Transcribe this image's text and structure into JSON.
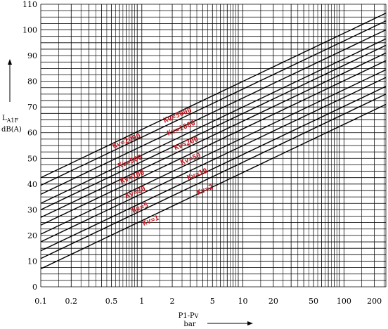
{
  "chart_data": {
    "type": "line",
    "x_scale": "log",
    "xlim": [
      0.1,
      260
    ],
    "ylim": [
      0,
      110
    ],
    "x_ticks": [
      "0.1",
      "0.2",
      "0.5",
      "1",
      "2",
      "5",
      "10",
      "20",
      "50",
      "100",
      "200"
    ],
    "y_ticks": [
      "0",
      "10",
      "20",
      "30",
      "40",
      "50",
      "60",
      "70",
      "80",
      "90",
      "100",
      "110"
    ],
    "xlabel": "P1-Pv",
    "xunit": "bar",
    "ylabel_main": "L",
    "ylabel_sub": "A1F",
    "yunit": "dB(A)",
    "grid": true,
    "series": [
      {
        "x": [
          0.1,
          260
        ],
        "y": [
          42.5,
          106.5
        ]
      },
      {
        "x": [
          0.1,
          260
        ],
        "y": [
          39.5,
          103.5
        ]
      },
      {
        "x": [
          0.1,
          260
        ],
        "y": [
          36.0,
          100.0
        ]
      },
      {
        "x": [
          0.1,
          260
        ],
        "y": [
          32.5,
          96.5
        ]
      },
      {
        "x": [
          0.1,
          260
        ],
        "y": [
          30.0,
          94.0
        ]
      },
      {
        "x": [
          0.1,
          260
        ],
        "y": [
          27.0,
          91.0
        ]
      },
      {
        "x": [
          0.1,
          260
        ],
        "y": [
          24.0,
          88.0
        ]
      },
      {
        "x": [
          0.1,
          260
        ],
        "y": [
          20.5,
          84.5
        ]
      },
      {
        "x": [
          0.1,
          260
        ],
        "y": [
          17.5,
          81.5
        ]
      },
      {
        "x": [
          0.1,
          260
        ],
        "y": [
          14.0,
          78.0
        ]
      },
      {
        "x": [
          0.1,
          260
        ],
        "y": [
          11.0,
          75.0
        ]
      },
      {
        "x": [
          0.1,
          260
        ],
        "y": [
          7.0,
          71.0
        ]
      }
    ],
    "annotations": [
      {
        "text": "Kv=2000",
        "x": 0.72,
        "y": 56.0
      },
      {
        "text": "Kv=500",
        "x": 0.78,
        "y": 48.0
      },
      {
        "text": "Kv=100",
        "x": 0.82,
        "y": 42.0
      },
      {
        "text": "Kv=20",
        "x": 0.88,
        "y": 36.0
      },
      {
        "text": "Kv=5",
        "x": 0.98,
        "y": 30.0
      },
      {
        "text": "Kv=1",
        "x": 1.25,
        "y": 25.0
      },
      {
        "text": "Kv=5000",
        "x": 2.3,
        "y": 66.0
      },
      {
        "text": "Kv=1000",
        "x": 2.5,
        "y": 61.0
      },
      {
        "text": "Kv=200",
        "x": 2.8,
        "y": 55.0
      },
      {
        "text": "Kv=50",
        "x": 3.1,
        "y": 49.0
      },
      {
        "text": "Kv=10",
        "x": 3.6,
        "y": 43.0
      },
      {
        "text": "Kv=2",
        "x": 4.3,
        "y": 37.0
      }
    ]
  }
}
